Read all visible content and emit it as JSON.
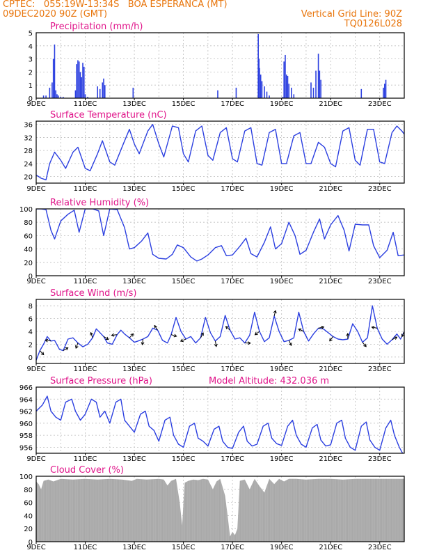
{
  "header": {
    "line1": "CPTEC:   055:19W-13:34S   BOA ESPERANCA (MT)",
    "line2": "09DEC2020 90Z (GMT)",
    "right1": "Vertical Grid Line: 90Z",
    "right2": "TQ0126L028"
  },
  "colors": {
    "header": "#e8750c",
    "title": "#e0158a",
    "line": "#2b3fe0",
    "cloud": "#a8a8a8",
    "grid": "#bdbdbd"
  },
  "x_axis": {
    "labels": [
      "9DEC",
      "11DEC",
      "13DEC",
      "15DEC",
      "17DEC",
      "19DEC",
      "21DEC",
      "23DEC"
    ],
    "label_days": [
      0,
      2,
      4,
      6,
      8,
      10,
      12,
      14
    ],
    "range_days": [
      0,
      15
    ]
  },
  "chart_data": [
    {
      "type": "bar",
      "title": "Precipitation (mm/h)",
      "ylim": [
        0,
        5
      ],
      "yticks": [
        0,
        1,
        2,
        3,
        4,
        5
      ],
      "x": [
        0.3,
        0.4,
        0.55,
        0.65,
        0.7,
        0.75,
        0.8,
        0.85,
        0.9,
        1.0,
        1.1,
        1.6,
        1.65,
        1.7,
        1.75,
        1.8,
        1.85,
        1.9,
        1.95,
        2.0,
        2.1,
        2.5,
        2.6,
        2.7,
        2.75,
        2.8,
        3.95,
        7.4,
        8.15,
        9.05,
        9.08,
        9.1,
        9.15,
        9.2,
        9.3,
        9.4,
        9.5,
        10.05,
        10.1,
        10.15,
        10.2,
        10.25,
        10.3,
        10.4,
        10.5,
        11.2,
        11.3,
        11.4,
        11.5,
        11.55,
        11.6,
        13.25,
        14.15,
        14.2,
        14.25
      ],
      "values": [
        0.2,
        0.2,
        0.8,
        1.2,
        3.0,
        4.1,
        0.6,
        0.3,
        0.2,
        0.1,
        0.1,
        0.6,
        2.6,
        2.9,
        2.8,
        2.0,
        1.6,
        2.7,
        2.4,
        0.3,
        0.1,
        0.9,
        0.7,
        1.2,
        1.5,
        1.0,
        0.8,
        0.6,
        0.8,
        4.9,
        3.0,
        2.3,
        1.8,
        1.3,
        0.9,
        0.5,
        0.2,
        0.1,
        2.8,
        3.3,
        1.8,
        1.7,
        1.1,
        0.8,
        0.3,
        1.2,
        0.8,
        2.1,
        3.4,
        2.1,
        1.4,
        0.7,
        0.8,
        1.1,
        1.4
      ]
    },
    {
      "type": "line",
      "title": "Surface Temperature (nC)",
      "ylim": [
        18,
        37
      ],
      "yticks": [
        20,
        24,
        28,
        32,
        36
      ],
      "x": [
        0,
        0.2,
        0.4,
        0.55,
        0.75,
        1.0,
        1.2,
        1.5,
        1.7,
        2.0,
        2.2,
        2.5,
        2.7,
        3.0,
        3.2,
        3.55,
        3.8,
        4.0,
        4.2,
        4.55,
        4.75,
        5.0,
        5.2,
        5.55,
        5.8,
        6.0,
        6.2,
        6.5,
        6.75,
        7.0,
        7.2,
        7.5,
        7.75,
        8.0,
        8.2,
        8.5,
        8.75,
        9.0,
        9.2,
        9.5,
        9.75,
        10.0,
        10.2,
        10.5,
        10.75,
        11.0,
        11.2,
        11.5,
        11.75,
        12.0,
        12.2,
        12.5,
        12.75,
        13.0,
        13.2,
        13.5,
        13.75,
        14.0,
        14.2,
        14.5,
        14.7,
        14.9,
        15.0
      ],
      "values": [
        20.5,
        19.5,
        19.0,
        24.0,
        27.5,
        25.0,
        22.5,
        27.5,
        29.0,
        22.5,
        21.8,
        27.0,
        31.0,
        24.5,
        23.5,
        30.0,
        34.5,
        30.0,
        27.0,
        34.0,
        36.0,
        30.0,
        26.0,
        35.5,
        35.0,
        27.0,
        24.5,
        34.0,
        35.5,
        26.5,
        25.0,
        33.5,
        35.0,
        25.5,
        24.5,
        34.0,
        35.0,
        24.0,
        23.5,
        33.5,
        34.5,
        24.0,
        24.0,
        32.5,
        33.5,
        24.0,
        24.0,
        30.5,
        29.0,
        24.0,
        23.0,
        34.0,
        35.0,
        25.0,
        23.5,
        34.5,
        34.5,
        24.5,
        24.0,
        33.5,
        35.5,
        34.0,
        33.0
      ]
    },
    {
      "type": "line",
      "title": "Relative Humidity (%)",
      "ylim": [
        0,
        100
      ],
      "yticks": [
        0,
        20,
        40,
        60,
        80,
        100
      ],
      "x": [
        0,
        0.2,
        0.4,
        0.6,
        0.75,
        1.0,
        1.3,
        1.55,
        1.75,
        2.0,
        2.3,
        2.55,
        2.75,
        3.0,
        3.3,
        3.6,
        3.8,
        4.0,
        4.3,
        4.55,
        4.75,
        5.0,
        5.3,
        5.55,
        5.75,
        6.0,
        6.3,
        6.55,
        6.75,
        7.0,
        7.3,
        7.55,
        7.75,
        8.0,
        8.3,
        8.55,
        8.75,
        9.0,
        9.3,
        9.55,
        9.75,
        10.0,
        10.3,
        10.55,
        10.75,
        11.0,
        11.3,
        11.55,
        11.75,
        12.0,
        12.3,
        12.55,
        12.75,
        13.0,
        13.3,
        13.55,
        13.75,
        14.0,
        14.3,
        14.55,
        14.75,
        15.0
      ],
      "values": [
        100,
        100,
        99,
        68,
        55,
        82,
        92,
        98,
        65,
        100,
        100,
        97,
        60,
        100,
        99,
        72,
        40,
        42,
        52,
        64,
        32,
        26,
        25,
        32,
        46,
        42,
        28,
        22,
        25,
        31,
        42,
        45,
        30,
        31,
        44,
        56,
        33,
        28,
        50,
        73,
        40,
        48,
        80,
        60,
        32,
        38,
        65,
        85,
        55,
        76,
        90,
        68,
        37,
        77,
        76,
        76,
        45,
        27,
        38,
        65,
        30,
        31
      ]
    },
    {
      "type": "line",
      "title": "Surface Wind (m/s)",
      "ylim": [
        -1,
        9
      ],
      "yticks": [
        0,
        2,
        4,
        6,
        8
      ],
      "x": [
        0,
        0.15,
        0.3,
        0.45,
        0.6,
        0.75,
        0.95,
        1.1,
        1.3,
        1.5,
        1.7,
        1.9,
        2.1,
        2.3,
        2.45,
        2.6,
        2.75,
        2.9,
        3.1,
        3.3,
        3.45,
        3.6,
        3.8,
        4.0,
        4.15,
        4.35,
        4.55,
        4.75,
        4.95,
        5.15,
        5.35,
        5.5,
        5.7,
        5.9,
        6.1,
        6.3,
        6.5,
        6.7,
        6.9,
        7.1,
        7.3,
        7.5,
        7.7,
        7.9,
        8.1,
        8.3,
        8.5,
        8.7,
        8.9,
        9.1,
        9.3,
        9.5,
        9.7,
        9.9,
        10.1,
        10.3,
        10.5,
        10.7,
        10.9,
        11.1,
        11.3,
        11.5,
        11.7,
        11.9,
        12.1,
        12.3,
        12.5,
        12.7,
        12.9,
        13.1,
        13.3,
        13.5,
        13.7,
        13.9,
        14.1,
        14.3,
        14.5,
        14.7,
        14.85,
        15.0
      ],
      "values": [
        -0.5,
        1.0,
        2.0,
        3.2,
        2.5,
        2.6,
        1.2,
        1.0,
        2.8,
        3.0,
        2.2,
        1.6,
        2.0,
        3.0,
        4.4,
        3.8,
        3.2,
        2.2,
        2.0,
        3.5,
        4.2,
        3.6,
        3.0,
        2.3,
        2.5,
        2.8,
        3.2,
        4.5,
        4.2,
        2.6,
        2.2,
        3.5,
        6.2,
        4.0,
        2.8,
        3.2,
        2.2,
        3.0,
        6.2,
        3.8,
        2.5,
        3.2,
        6.5,
        4.2,
        2.8,
        3.0,
        2.2,
        3.4,
        7.0,
        4.0,
        2.4,
        3.0,
        6.4,
        4.0,
        2.4,
        2.6,
        3.0,
        7.0,
        4.0,
        2.5,
        3.6,
        4.5,
        4.4,
        3.8,
        3.2,
        2.8,
        2.7,
        2.8,
        5.2,
        4.0,
        2.3,
        3.0,
        8.0,
        4.5,
        2.8,
        2.0,
        2.7,
        3.6,
        2.8,
        4.0
      ]
    },
    {
      "type": "line",
      "title": "Surface Pressure (hPa)",
      "annotation": "Model Altitude: 432.036 m",
      "ylim": [
        955,
        966
      ],
      "yticks": [
        956,
        958,
        960,
        962,
        964,
        966
      ],
      "x": [
        0,
        0.25,
        0.45,
        0.6,
        0.8,
        1.0,
        1.2,
        1.45,
        1.6,
        1.8,
        2.0,
        2.25,
        2.45,
        2.6,
        2.8,
        3.0,
        3.25,
        3.45,
        3.6,
        3.8,
        4.0,
        4.25,
        4.45,
        4.6,
        4.8,
        5.0,
        5.25,
        5.45,
        5.6,
        5.8,
        6.0,
        6.25,
        6.45,
        6.6,
        6.8,
        7.0,
        7.25,
        7.45,
        7.6,
        7.8,
        8.0,
        8.25,
        8.45,
        8.6,
        8.8,
        9.0,
        9.25,
        9.45,
        9.6,
        9.8,
        10.0,
        10.25,
        10.45,
        10.6,
        10.8,
        11.0,
        11.25,
        11.45,
        11.6,
        11.8,
        12.0,
        12.25,
        12.45,
        12.6,
        12.8,
        13.0,
        13.25,
        13.45,
        13.6,
        13.8,
        14.0,
        14.25,
        14.45,
        14.6,
        14.8,
        15.0
      ],
      "values": [
        962.0,
        963.0,
        964.5,
        962.0,
        961.0,
        960.5,
        963.5,
        964.0,
        962.0,
        960.5,
        961.5,
        964.0,
        963.5,
        961.0,
        962.0,
        960.0,
        963.5,
        964.0,
        960.5,
        959.5,
        958.5,
        961.5,
        962.0,
        959.5,
        958.8,
        957.0,
        960.5,
        961.0,
        958.0,
        956.5,
        956.0,
        959.5,
        960.0,
        957.5,
        957.0,
        956.2,
        959.0,
        959.5,
        957.0,
        956.0,
        955.8,
        958.5,
        959.5,
        957.0,
        956.2,
        956.5,
        959.5,
        960.0,
        957.5,
        956.6,
        956.3,
        959.5,
        960.5,
        958.0,
        956.5,
        956.0,
        959.2,
        959.8,
        957.2,
        956.2,
        956.4,
        960.0,
        960.5,
        957.5,
        956.0,
        955.5,
        959.5,
        960.2,
        957.2,
        956.0,
        955.5,
        959.2,
        960.5,
        958.0,
        956.0,
        954.5
      ]
    },
    {
      "type": "area",
      "title": "Cloud Cover (%)",
      "ylim": [
        0,
        100
      ],
      "yticks": [
        0,
        20,
        40,
        60,
        80,
        100
      ],
      "x": [
        0,
        0.1,
        0.2,
        0.3,
        0.5,
        0.7,
        1.0,
        1.5,
        2.0,
        2.5,
        3.0,
        3.5,
        3.9,
        4.1,
        4.5,
        5.0,
        5.2,
        5.35,
        5.5,
        5.7,
        5.85,
        5.95,
        6.05,
        6.2,
        6.4,
        6.6,
        6.8,
        7.0,
        7.2,
        7.35,
        7.5,
        7.7,
        7.8,
        7.9,
        8.0,
        8.1,
        8.2,
        8.3,
        8.5,
        8.7,
        8.9,
        9.1,
        9.3,
        9.5,
        9.7,
        9.9,
        10.1,
        10.3,
        10.6,
        11.0,
        11.5,
        12.0,
        12.5,
        13.0,
        13.5,
        14.0,
        14.5,
        15.0
      ],
      "values": [
        92,
        88,
        80,
        93,
        95,
        92,
        96,
        95,
        96,
        95,
        96,
        95,
        93,
        96,
        95,
        96,
        95,
        86,
        93,
        96,
        60,
        25,
        90,
        93,
        95,
        94,
        96,
        95,
        80,
        92,
        96,
        70,
        40,
        8,
        15,
        10,
        20,
        93,
        95,
        80,
        96,
        85,
        75,
        96,
        88,
        96,
        92,
        96,
        96,
        95,
        96,
        96,
        95,
        96,
        96,
        96,
        96,
        96
      ]
    }
  ]
}
